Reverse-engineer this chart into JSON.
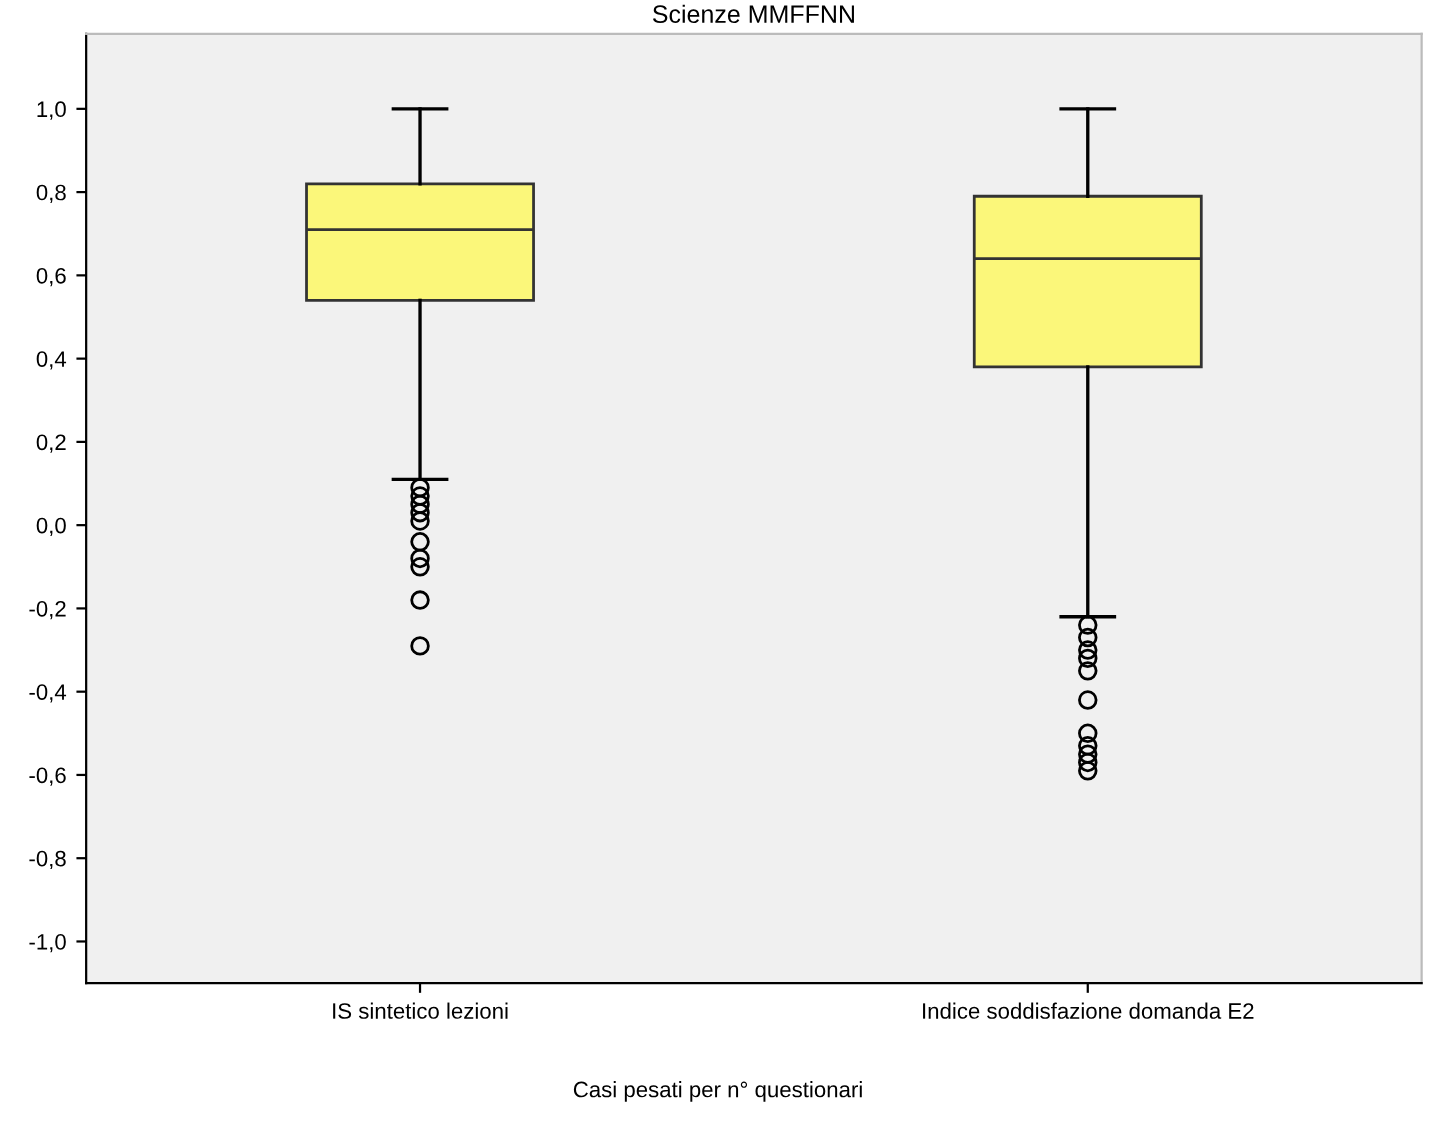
{
  "chart_data": {
    "type": "box",
    "title": "Scienze MMFFNN",
    "categories": [
      "IS sintetico lezioni",
      "Indice soddisfazione domanda E2"
    ],
    "series": [
      {
        "color": "#fbf77a",
        "boxes": [
          {
            "low": 0.11,
            "q1": 0.54,
            "median": 0.71,
            "q3": 0.82,
            "high": 1.0,
            "outliers": [
              0.09,
              0.07,
              0.05,
              0.03,
              0.01,
              -0.04,
              -0.08,
              -0.1,
              -0.18,
              -0.29
            ]
          },
          {
            "low": -0.22,
            "q1": 0.38,
            "median": 0.64,
            "q3": 0.79,
            "high": 1.0,
            "outliers": [
              -0.24,
              -0.27,
              -0.3,
              -0.32,
              -0.35,
              -0.42,
              -0.5,
              -0.53,
              -0.55,
              -0.57,
              -0.59
            ]
          }
        ]
      }
    ],
    "ylim": [
      -1.1,
      1.18
    ],
    "yticks": [
      {
        "value": -1.0,
        "label": "-1,0"
      },
      {
        "value": -0.8,
        "label": "-0,8"
      },
      {
        "value": -0.6,
        "label": "-0,6"
      },
      {
        "value": -0.4,
        "label": "-0,4"
      },
      {
        "value": -0.2,
        "label": "-0,2"
      },
      {
        "value": 0.0,
        "label": "0,0"
      },
      {
        "value": 0.2,
        "label": "0,2"
      },
      {
        "value": 0.4,
        "label": "0,4"
      },
      {
        "value": 0.6,
        "label": "0,6"
      },
      {
        "value": 0.8,
        "label": "0,8"
      },
      {
        "value": 1.0,
        "label": "1,0"
      }
    ],
    "grid": false,
    "annotations": [
      "Casi pesati per n° questionari"
    ]
  }
}
